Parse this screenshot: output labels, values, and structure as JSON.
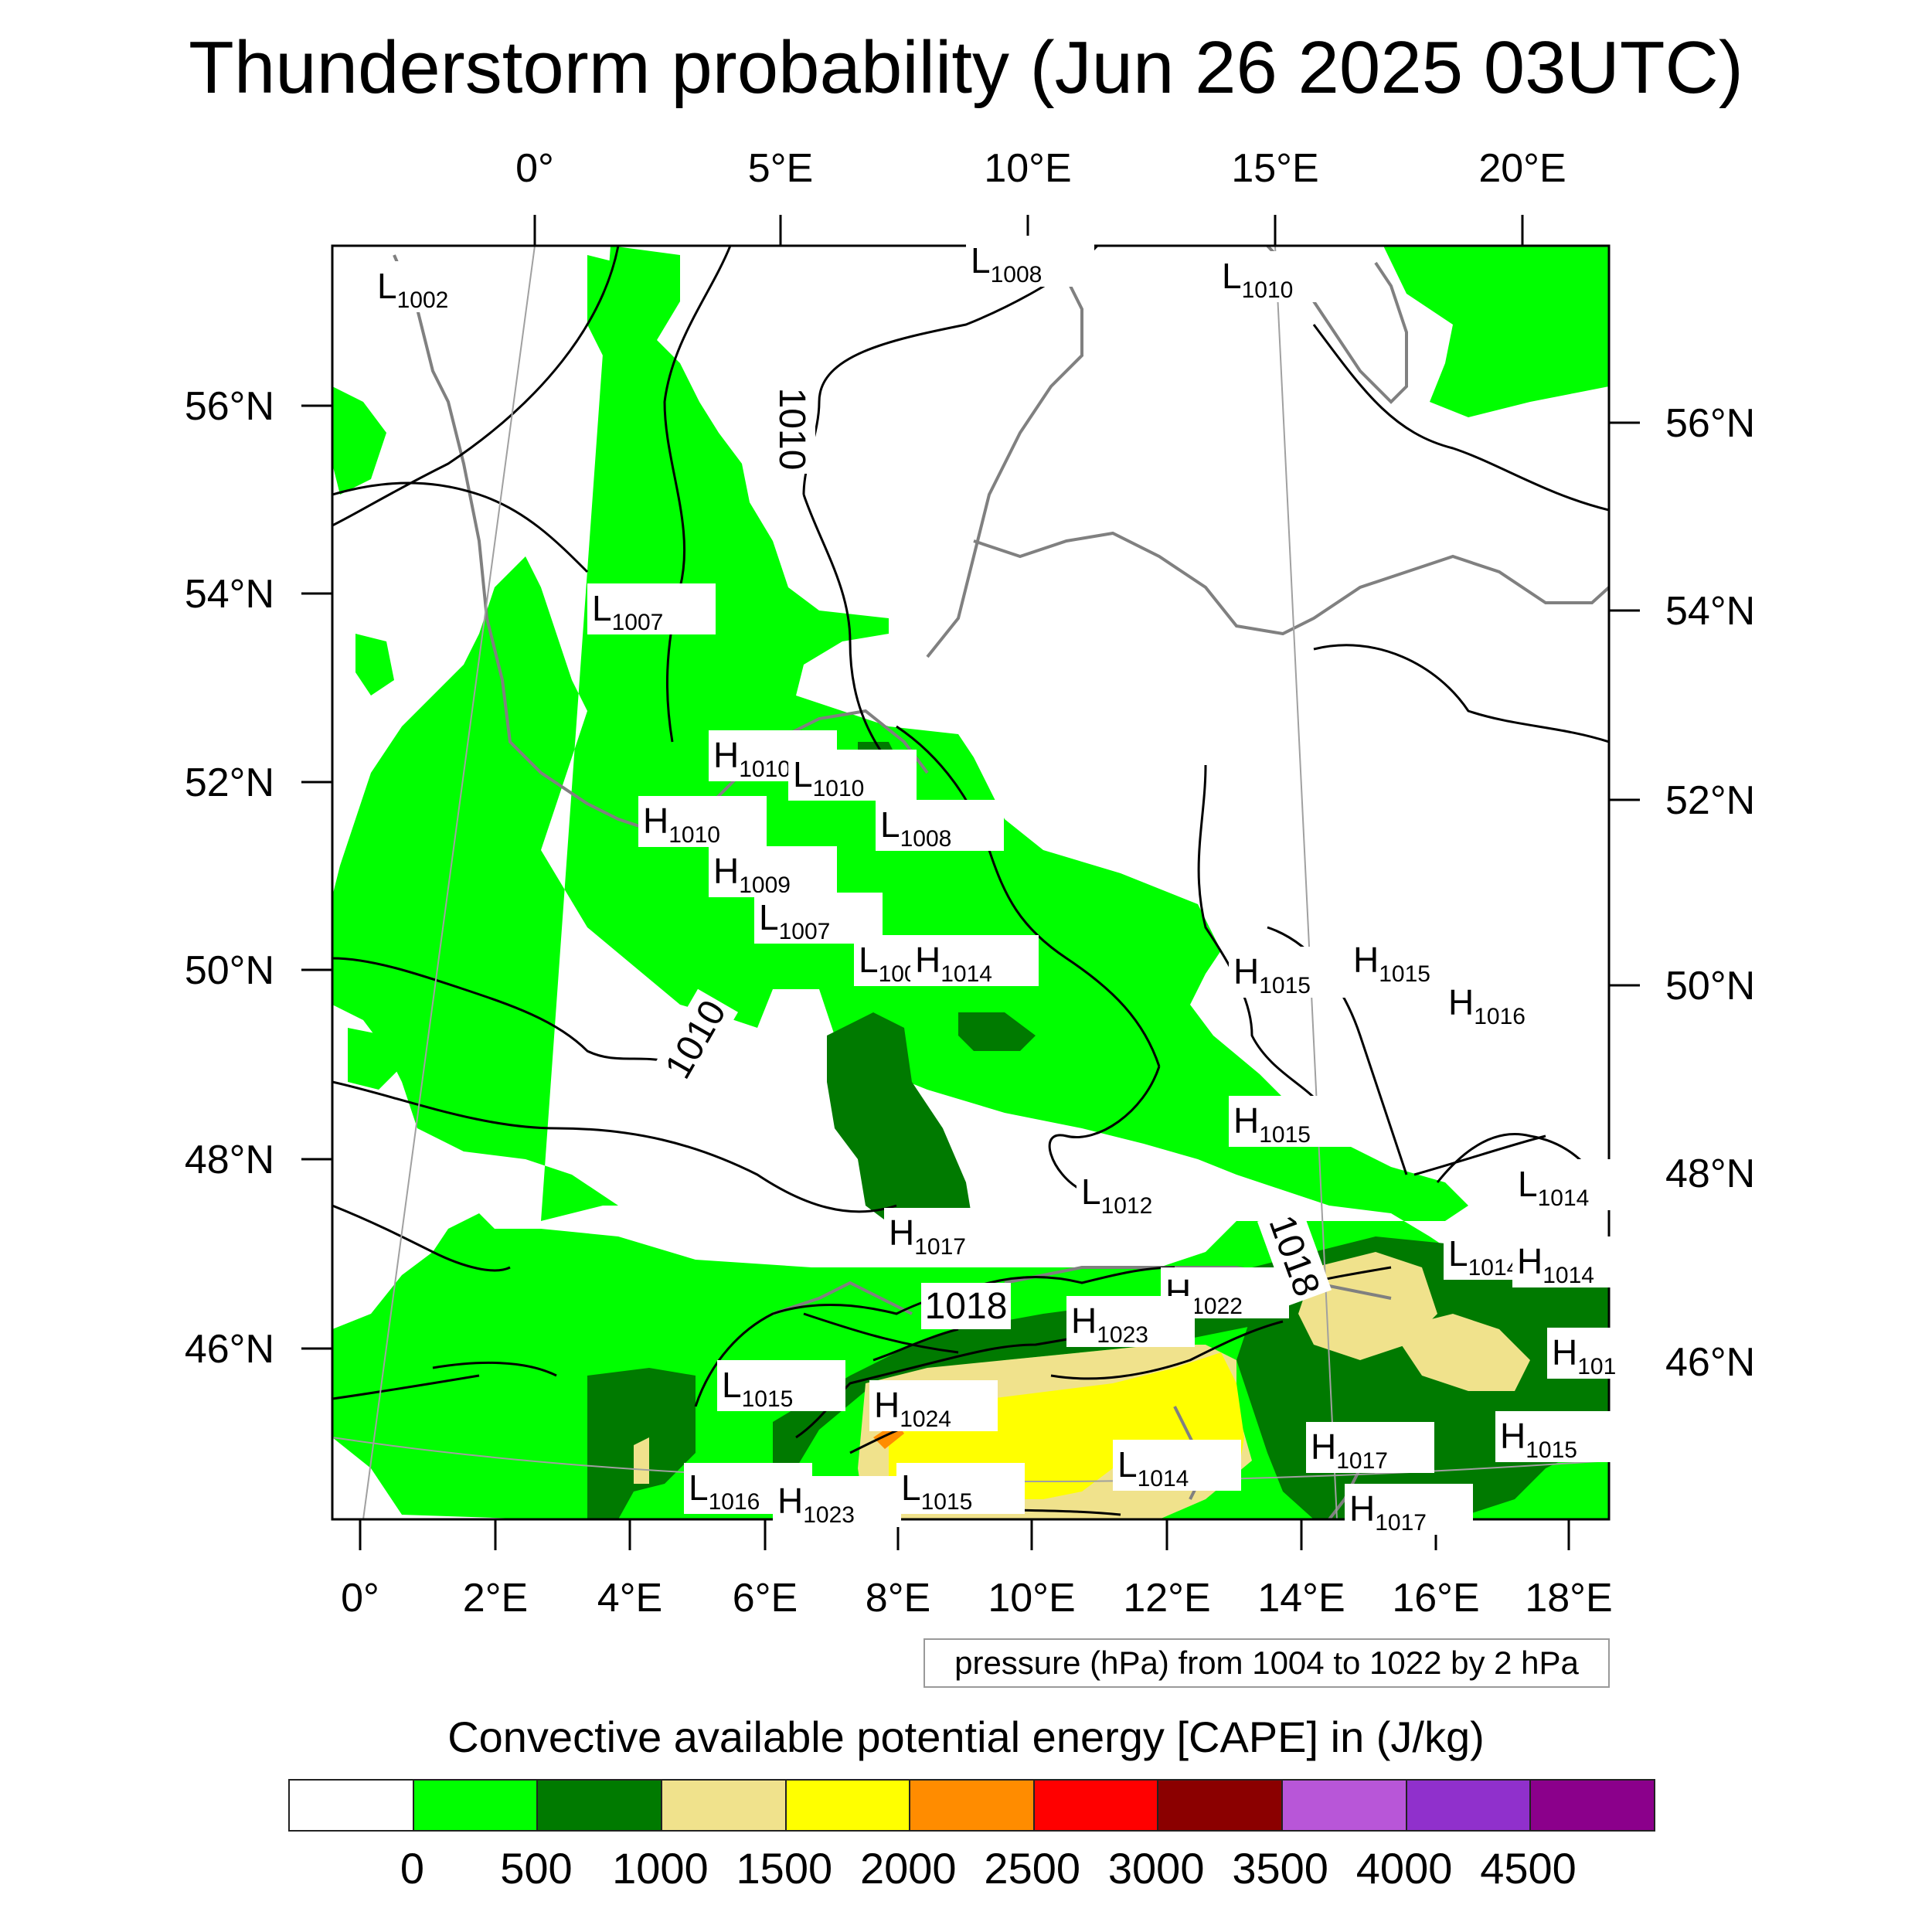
{
  "title": "Thunderstorm probability (Jun 26 2025 03UTC)",
  "caption": "pressure (hPa) from 1004 to 1022 by 2 hPa",
  "colorbar": {
    "title": "Convective available potential energy [CAPE] in (J/kg)",
    "colors": [
      "#ffffff",
      "#00ff00",
      "#007a00",
      "#f0e28c",
      "#ffff00",
      "#ff8c00",
      "#ff0000",
      "#8b0000",
      "#b856d8",
      "#9030cc",
      "#8b008b"
    ],
    "ticks": [
      "0",
      "500",
      "1000",
      "1500",
      "2000",
      "2500",
      "3000",
      "3500",
      "4000",
      "4500"
    ]
  },
  "axes": {
    "top": [
      "0°",
      "5°E",
      "10°E",
      "15°E",
      "20°E"
    ],
    "bottom": [
      "0°",
      "2°E",
      "4°E",
      "6°E",
      "8°E",
      "10°E",
      "12°E",
      "14°E",
      "16°E",
      "18°E"
    ],
    "left": [
      "56°N",
      "54°N",
      "52°N",
      "50°N",
      "48°N",
      "46°N"
    ],
    "right": [
      "56°N",
      "54°N",
      "52°N",
      "50°N",
      "48°N",
      "46°N"
    ]
  },
  "pressure_labels": [
    {
      "type": "L",
      "value": "1002"
    },
    {
      "type": "L",
      "value": "1008"
    },
    {
      "type": "L",
      "value": "1010"
    },
    {
      "type": "L",
      "value": "1007"
    },
    {
      "type": "H",
      "value": "1010"
    },
    {
      "type": "L",
      "value": "1010"
    },
    {
      "type": "H",
      "value": "1010"
    },
    {
      "type": "L",
      "value": "1008"
    },
    {
      "type": "H",
      "value": "1009"
    },
    {
      "type": "L",
      "value": "1007"
    },
    {
      "type": "L",
      "value": "100"
    },
    {
      "type": "H",
      "value": "1014"
    },
    {
      "type": "H",
      "value": "1015"
    },
    {
      "type": "H",
      "value": "1015"
    },
    {
      "type": "H",
      "value": "1016"
    },
    {
      "type": "H",
      "value": "1015"
    },
    {
      "type": "L",
      "value": "1012"
    },
    {
      "type": "L",
      "value": "1014"
    },
    {
      "type": "H",
      "value": "1017"
    },
    {
      "type": "L",
      "value": "1014"
    },
    {
      "type": "H",
      "value": "1014"
    },
    {
      "type": "H",
      "value": "1022"
    },
    {
      "type": "H",
      "value": "1023"
    },
    {
      "type": "H",
      "value": "101"
    },
    {
      "type": "L",
      "value": "1015"
    },
    {
      "type": "H",
      "value": "1024"
    },
    {
      "type": "H",
      "value": "1017"
    },
    {
      "type": "H",
      "value": "1015"
    },
    {
      "type": "L",
      "value": "1014"
    },
    {
      "type": "L",
      "value": "1016"
    },
    {
      "type": "L",
      "value": "1015"
    },
    {
      "type": "H",
      "value": "1023"
    },
    {
      "type": "H",
      "value": "1017"
    }
  ],
  "contour_labels": [
    "1010",
    "1010",
    "1018",
    "1018"
  ]
}
